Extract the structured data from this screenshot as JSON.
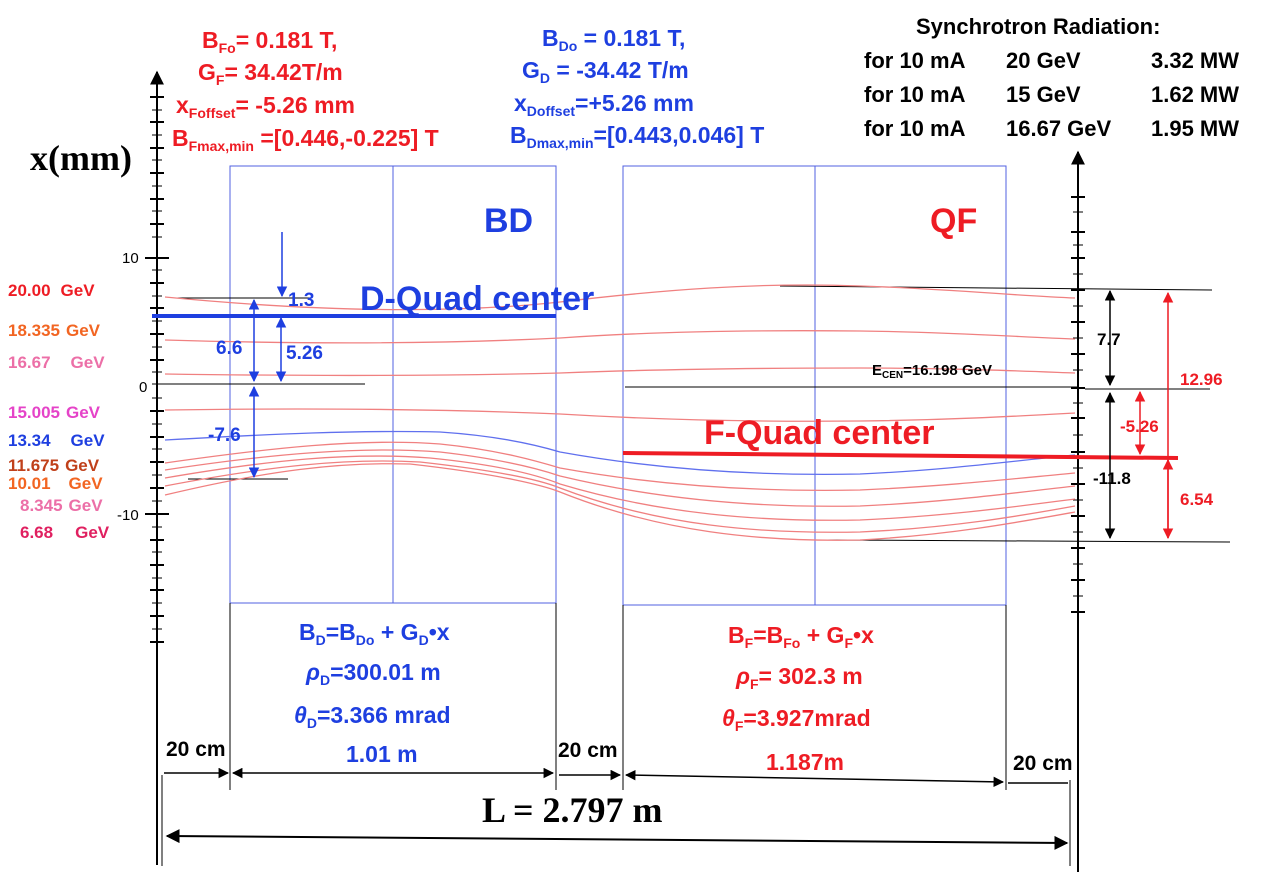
{
  "colors": {
    "red": "#ee1c24",
    "blue": "#1e3fe0",
    "orange": "#f26522",
    "pink": "#ec6fa7",
    "magenta": "#e543c8",
    "crimson": "#e02060",
    "brown": "#c0401a",
    "trace": "#f08080"
  },
  "axis": {
    "label": "x(mm)",
    "tick_10": "10",
    "tick_0": "0",
    "tick_m10": "-10"
  },
  "top_left_params": {
    "bfo": "B",
    "bfo_sub": "Fo",
    "bfo_val": "=  0.181 T,",
    "gf": "G",
    "gf_sub": "F",
    "gf_val": "= 34.42T/m",
    "xoff": "x",
    "xoff_sub": "Foffset",
    "xoff_val": "= -5.26 mm",
    "bmax": "B",
    "bmax_sub": "Fmax,min",
    "bmax_val": " =[0.446,-0.225] T"
  },
  "top_mid_params": {
    "bdo": "B",
    "bdo_sub": "Do",
    "bdo_val": " = 0.181 T,",
    "gd": "G",
    "gd_sub": "D",
    "gd_val": " = -34.42 T/m",
    "xoff": "x",
    "xoff_sub": "Doffset",
    "xoff_val": "=+5.26 mm",
    "bmax": "B",
    "bmax_sub": "Dmax,min",
    "bmax_val": "=[0.443,0.046] T"
  },
  "synchrotron": {
    "title": "Synchrotron Radiation:",
    "rows": [
      {
        "current": "for 10 mA",
        "energy": "20 GeV",
        "power": "3.32 MW"
      },
      {
        "current": "for 10 mA",
        "energy": "15 GeV",
        "power": "1.62 MW"
      },
      {
        "current": "for 10 mA",
        "energy": "16.67 GeV",
        "power": "1.95 MW"
      }
    ]
  },
  "magnets": {
    "bd_label": "BD",
    "qf_label": "QF",
    "d_center": "D-Quad center",
    "f_center": "F-Quad center",
    "ecen": "E",
    "ecen_sub": "CEN",
    "ecen_val": "=16.198 GeV"
  },
  "energies": [
    {
      "value": "20.00",
      "unit": "GeV",
      "color": "#ee1c24"
    },
    {
      "value": "18.335",
      "unit": "GeV",
      "color": "#f26522"
    },
    {
      "value": "16.67",
      "unit": "GeV",
      "color": "#ec6fa7"
    },
    {
      "value": "15.005",
      "unit": "GeV",
      "color": "#e543c8"
    },
    {
      "value": "13.34",
      "unit": "GeV",
      "color": "#1e3fe0"
    },
    {
      "value": "11.675",
      "unit": "GeV",
      "color": "#c0401a"
    },
    {
      "value": "10.01",
      "unit": "GeV",
      "color": "#f26522"
    },
    {
      "value": "8.345",
      "unit": "GeV",
      "color": "#ec6fa7"
    },
    {
      "value": "6.68",
      "unit": "GeV",
      "color": "#e02060"
    }
  ],
  "left_dims": {
    "d1": "1.3",
    "d2": "6.6",
    "d3": "5.26",
    "d4": "-7.6"
  },
  "right_dims": {
    "d1": "7.7",
    "d2": "-11.8",
    "d3": "12.96",
    "d4": "-5.26",
    "d5": "6.54"
  },
  "bd_formulas": {
    "b_a": "B",
    "b_a_sub": "D",
    "b_b": "=B",
    "b_b_sub": "Do",
    "b_c": " + G",
    "b_c_sub": "D",
    "b_d": "•x",
    "rho": "ρ",
    "rho_sub": "D",
    "rho_val": "=300.01 m",
    "theta": "θ",
    "theta_sub": "D",
    "theta_val": "=3.366 mrad",
    "length": "1.01 m"
  },
  "qf_formulas": {
    "b_a": "B",
    "b_a_sub": "F",
    "b_b": "=B",
    "b_b_sub": "Fo",
    "b_c": " + G",
    "b_c_sub": "F",
    "b_d": "•x",
    "rho": "ρ",
    "rho_sub": "F",
    "rho_val": "= 302.3 m",
    "theta": "θ",
    "theta_sub": "F",
    "theta_val": "=3.927mrad",
    "length": "1.187m"
  },
  "gaps": {
    "g1": "20 cm",
    "g2": "20 cm",
    "g3": "20 cm"
  },
  "total_length": "L = 2.797  m"
}
